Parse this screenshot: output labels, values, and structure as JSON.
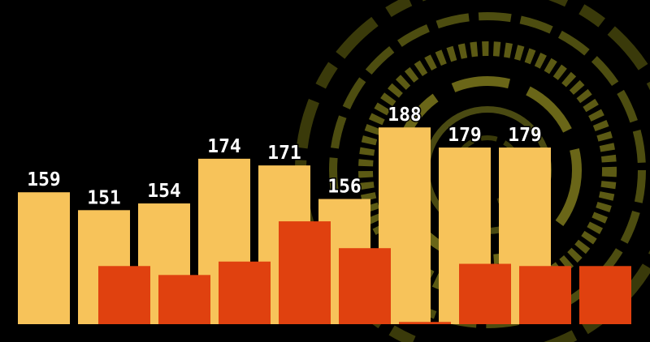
{
  "chart_data": {
    "type": "bar",
    "categories": [
      null,
      null,
      null,
      null,
      null,
      null,
      null,
      null,
      null
    ],
    "series": [
      {
        "color": "#f7c35a",
        "values": [
          159,
          151,
          154,
          174,
          171,
          156,
          188,
          179,
          179
        ]
      },
      {
        "color": "#e0410f",
        "values": [
          126,
          122,
          128,
          146,
          134,
          101,
          127,
          126,
          126
        ]
      }
    ],
    "ylim": [
      100,
      245
    ]
  }
}
